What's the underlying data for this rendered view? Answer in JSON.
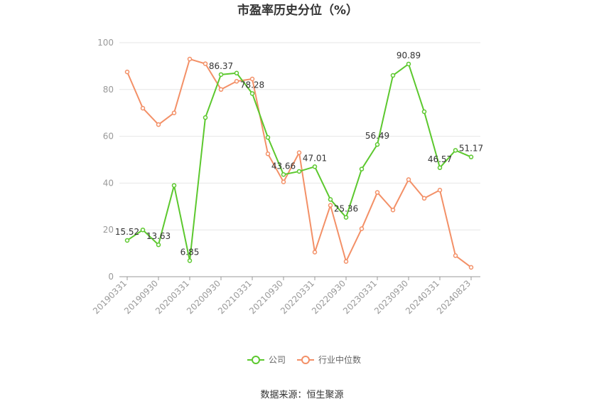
{
  "chart_data": {
    "type": "line",
    "title": "市盈率历史分位（%）",
    "xlabel": "",
    "ylabel": "",
    "ylim": [
      0,
      100
    ],
    "yticks": [
      0,
      20,
      40,
      60,
      80,
      100
    ],
    "x": [
      "20190331",
      "20190630",
      "20190930",
      "20191231",
      "20200331",
      "20200630",
      "20200930",
      "20201231",
      "20210331",
      "20210630",
      "20210930",
      "20211231",
      "20220331",
      "20220630",
      "20220930",
      "20221231",
      "20230331",
      "20230630",
      "20230930",
      "20231231",
      "20240331",
      "20240630",
      "20240823"
    ],
    "xtick_labels": [
      "20190331",
      "20190930",
      "20200331",
      "20200930",
      "20210331",
      "20210930",
      "20220331",
      "20220930",
      "20230331",
      "20230930",
      "20240331",
      "20240823"
    ],
    "series": [
      {
        "name": "公司",
        "color": "#5cc82e",
        "values": [
          15.52,
          20.0,
          13.63,
          39.0,
          6.85,
          68.0,
          86.37,
          87.0,
          78.28,
          59.5,
          43.66,
          45.0,
          47.01,
          33.0,
          25.36,
          46.0,
          56.49,
          86.0,
          90.89,
          70.5,
          46.57,
          54.0,
          51.17
        ],
        "labels": [
          "15.52",
          null,
          "13.63",
          null,
          "6.85",
          null,
          "86.37",
          null,
          "78.28",
          null,
          "43.66",
          null,
          "47.01",
          null,
          "25.36",
          null,
          "56.49",
          null,
          "90.89",
          null,
          "46.57",
          null,
          "51.17"
        ]
      },
      {
        "name": "行业中位数",
        "color": "#f39067",
        "values": [
          87.5,
          72.0,
          65.0,
          70.0,
          93.0,
          91.0,
          80.0,
          83.5,
          84.5,
          52.5,
          40.5,
          53.0,
          10.5,
          30.5,
          6.5,
          20.5,
          36.0,
          28.5,
          41.5,
          33.5,
          37.0,
          9.0,
          4.0
        ],
        "labels": []
      }
    ],
    "legend_position": "bottom",
    "grid": true
  },
  "source_text": "数据来源：恒生聚源"
}
